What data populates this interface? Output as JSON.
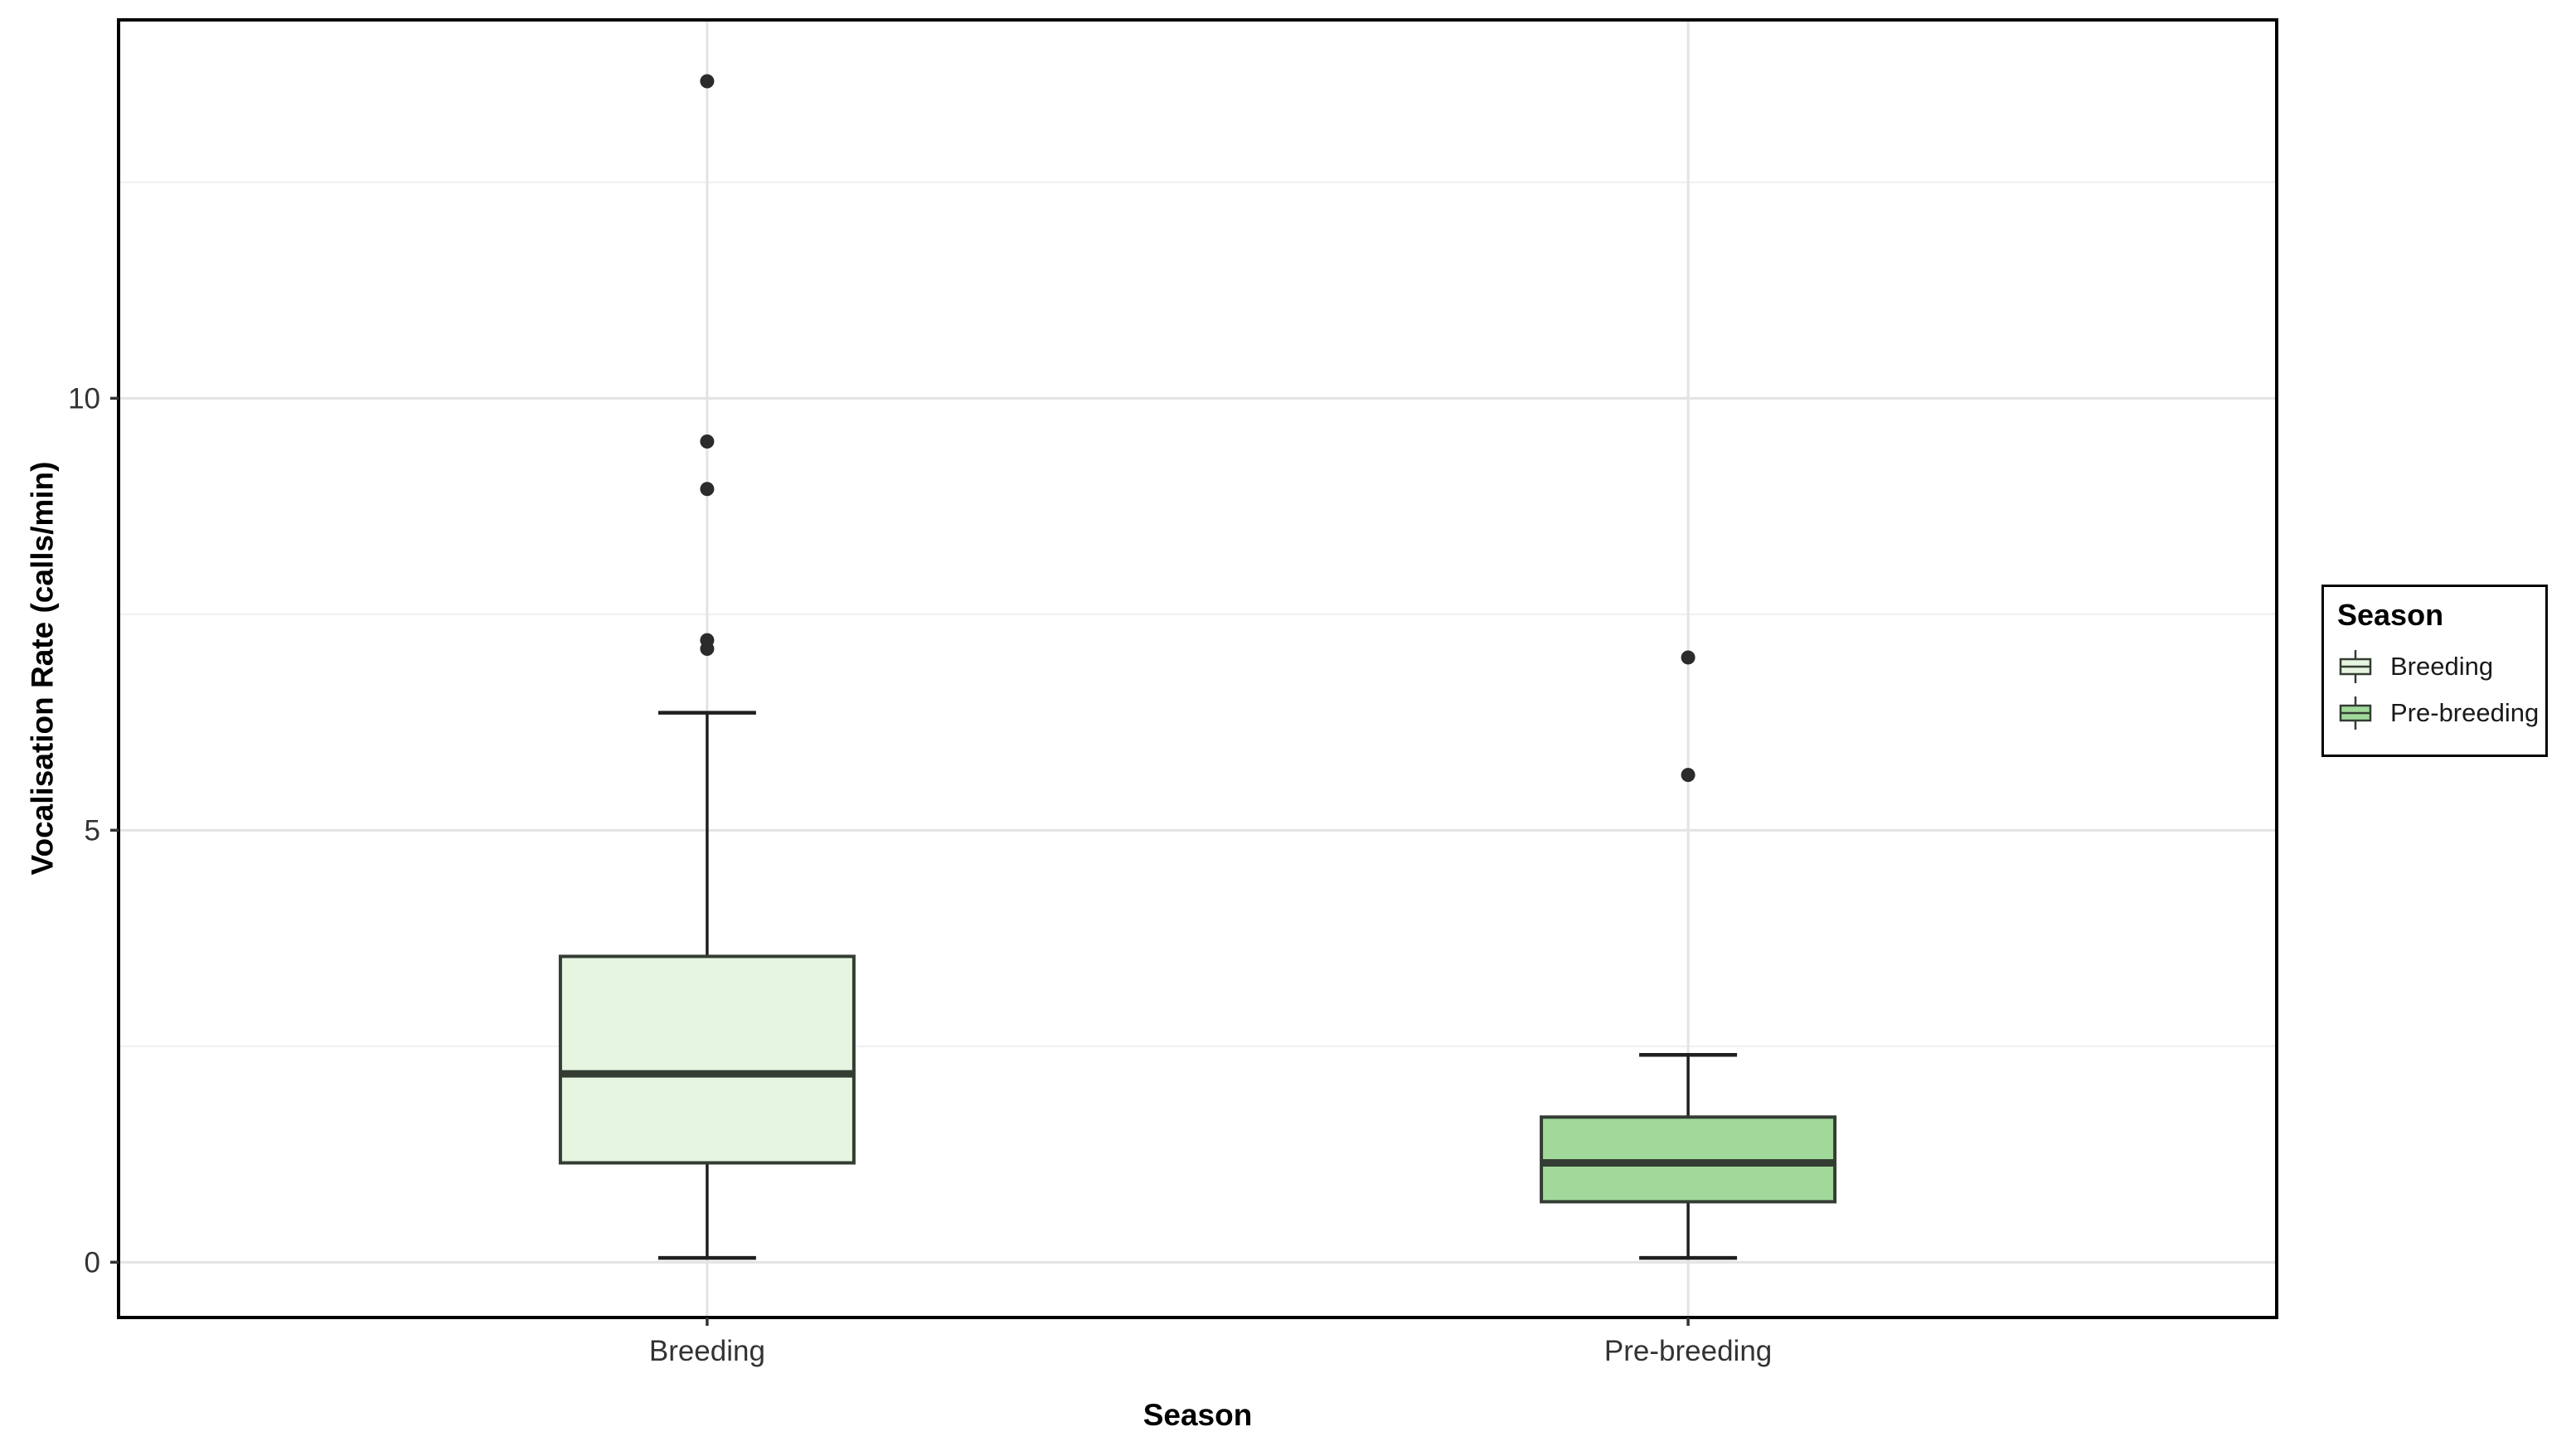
{
  "figure": {
    "background": "#ffffff",
    "panel_border_color": "#000000",
    "grid_major_color": "#e3e3e3",
    "grid_minor_color": "#efefef",
    "box_stroke_color": "#343d33",
    "whisker_color": "#1f1f1f",
    "outlier_color": "#2b2b2b",
    "axis_text_color": "#333333"
  },
  "chart_data": {
    "type": "box",
    "title": "",
    "xlabel": "Season",
    "ylabel": "Vocalisation Rate (calls/min)",
    "categories": [
      "Breeding",
      "Pre-breeding"
    ],
    "y_axis": {
      "tick_values": [
        0,
        5,
        10
      ],
      "tick_labels": [
        "0",
        "5",
        "10"
      ],
      "minor_gridlines": [
        2.5,
        7.5,
        12.5
      ],
      "range": [
        -0.64,
        14.38
      ],
      "grid": true
    },
    "series": [
      {
        "name": "Breeding",
        "fill": "#E5F5E0",
        "stats": {
          "whisker_low": 0.05,
          "q1": 1.15,
          "median": 2.18,
          "q3": 3.54,
          "whisker_high": 6.36
        },
        "outliers": [
          7.1,
          7.2,
          8.95,
          9.5,
          13.67
        ]
      },
      {
        "name": "Pre-breeding",
        "fill": "#A1D99B",
        "stats": {
          "whisker_low": 0.05,
          "q1": 0.7,
          "median": 1.15,
          "q3": 1.68,
          "whisker_high": 2.4
        },
        "outliers": [
          5.64,
          7.0
        ]
      }
    ],
    "legend": {
      "title": "Season",
      "position": "right",
      "entries": [
        {
          "label": "Breeding",
          "fill": "#E5F5E0"
        },
        {
          "label": "Pre-breeding",
          "fill": "#A1D99B"
        }
      ]
    }
  }
}
